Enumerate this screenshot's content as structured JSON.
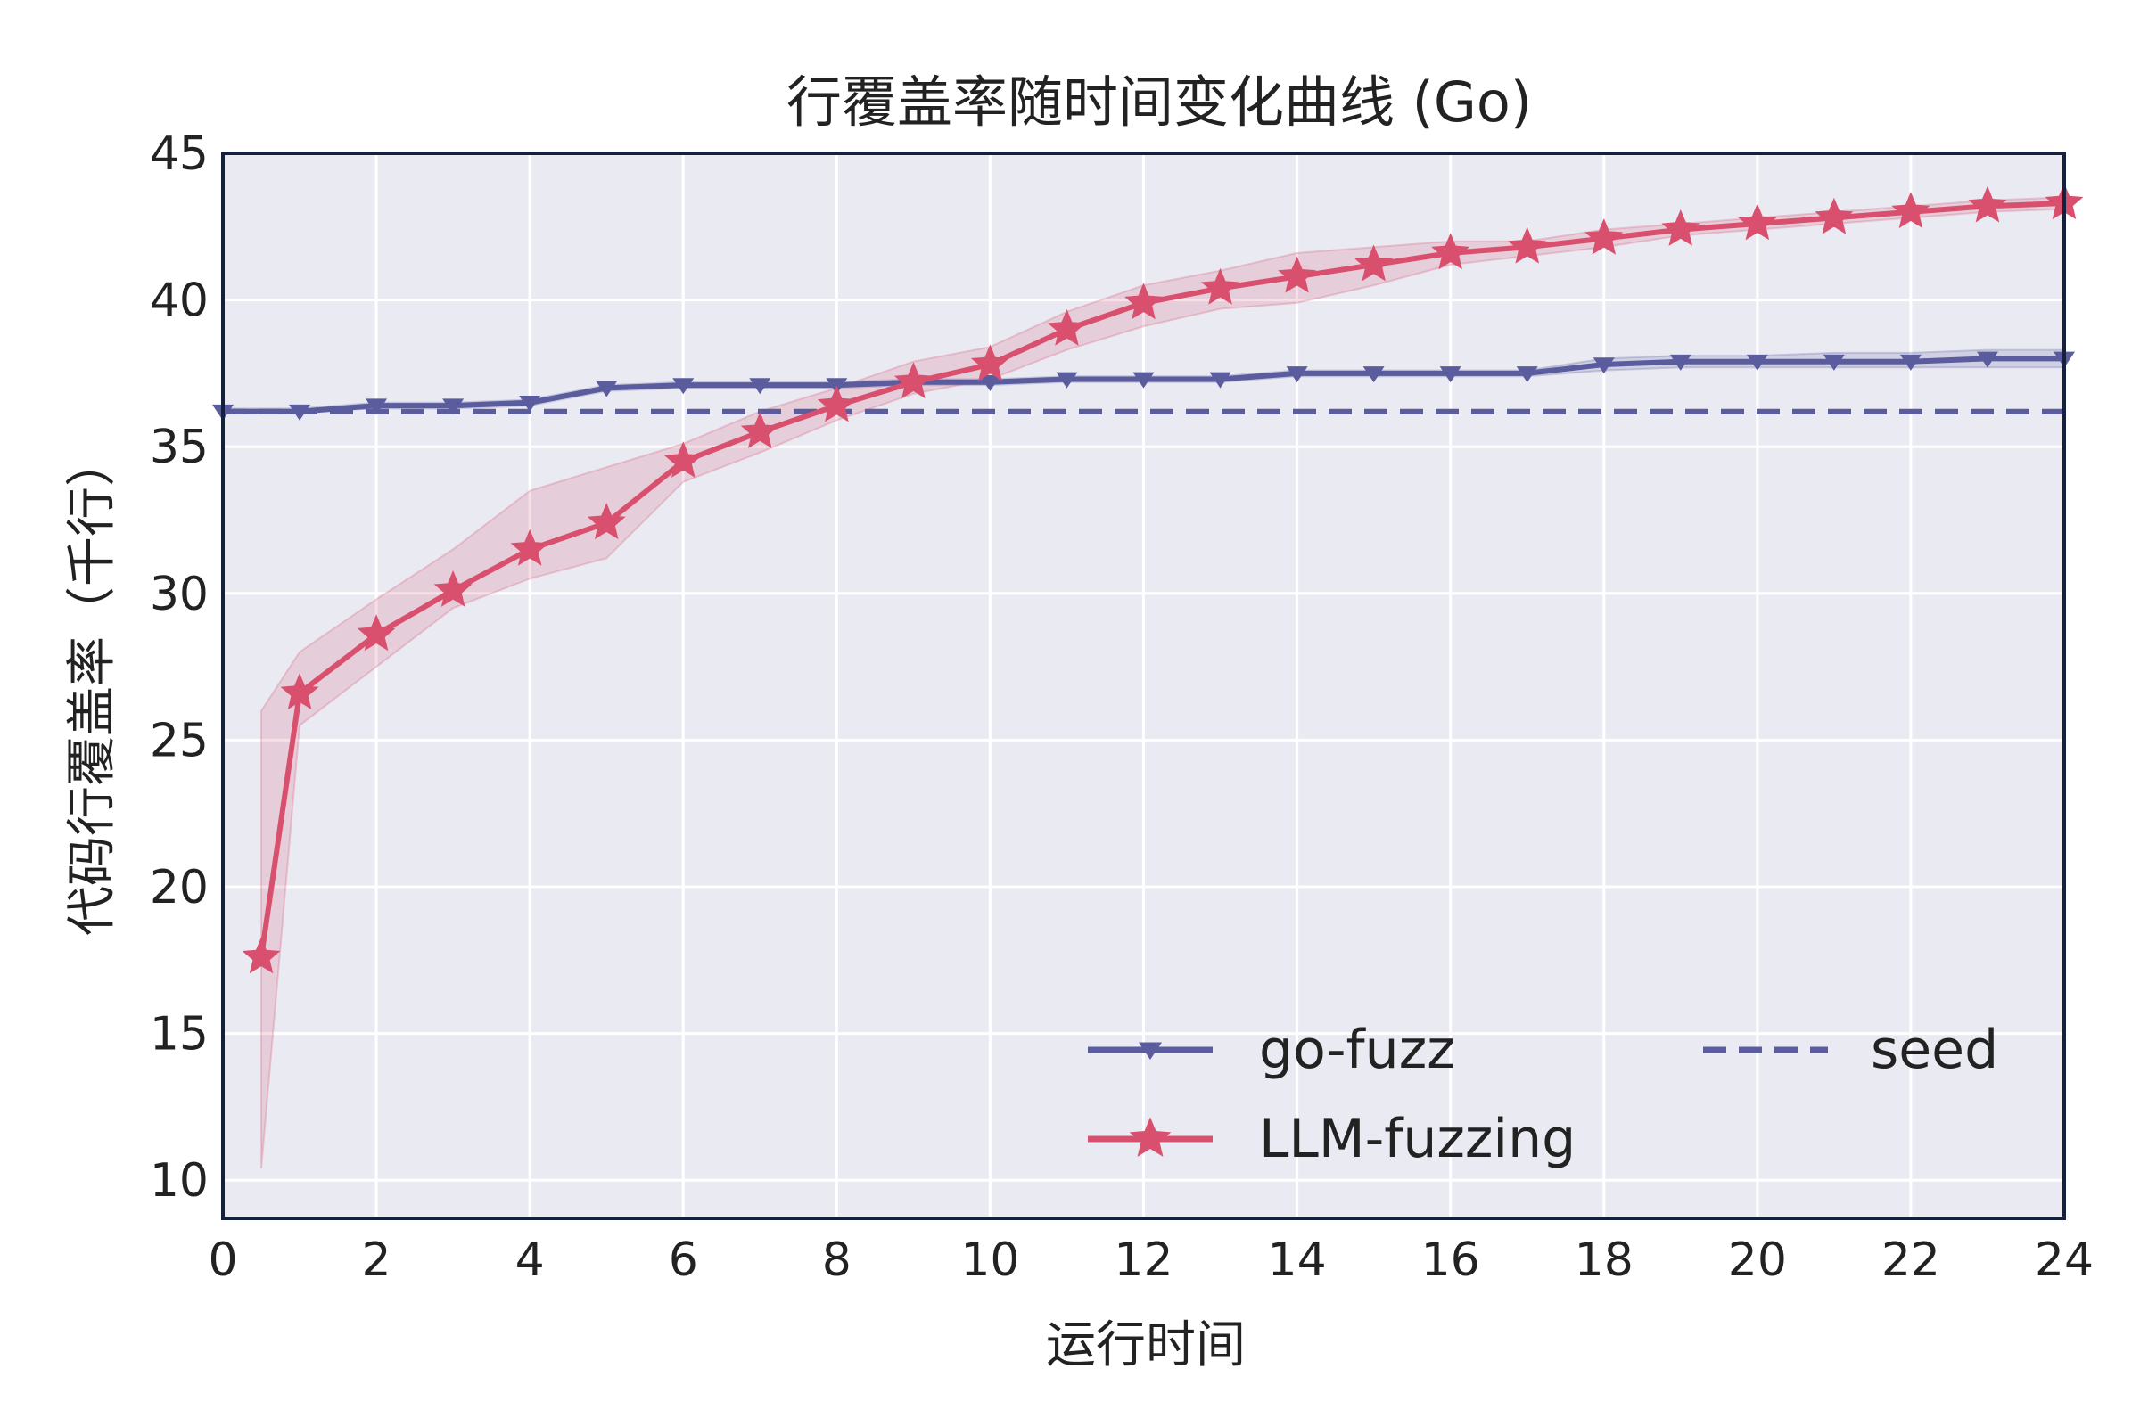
{
  "chart_data": {
    "type": "line",
    "title": "行覆盖率随时间变化曲线 (Go)",
    "xlabel": "运行时间",
    "ylabel": "代码行覆盖率（千行）",
    "xlim": [
      0,
      24
    ],
    "ylim": [
      8.7,
      45
    ],
    "xticks": [
      "0",
      "2",
      "4",
      "6",
      "8",
      "10",
      "12",
      "14",
      "16",
      "18",
      "20",
      "22",
      "24"
    ],
    "yticks": [
      "10",
      "15",
      "20",
      "25",
      "30",
      "35",
      "40",
      "45"
    ],
    "grid": true,
    "legend_position": "lower-right",
    "seed": {
      "name": "seed",
      "value": 36.2,
      "color": "#5a5c9e"
    },
    "series": [
      {
        "name": "go-fuzz",
        "marker": "triangle-down",
        "color": "#5a5c9e",
        "x": [
          0,
          1,
          2,
          3,
          4,
          5,
          6,
          7,
          8,
          9,
          10,
          11,
          12,
          13,
          14,
          15,
          16,
          17,
          18,
          19,
          20,
          21,
          22,
          23,
          24
        ],
        "y": [
          36.2,
          36.2,
          36.4,
          36.4,
          36.5,
          37.0,
          37.1,
          37.1,
          37.1,
          37.2,
          37.2,
          37.3,
          37.3,
          37.3,
          37.5,
          37.5,
          37.5,
          37.5,
          37.8,
          37.9,
          37.9,
          37.9,
          37.9,
          38.0,
          38.0
        ],
        "lower": [
          36.2,
          36.2,
          36.3,
          36.3,
          36.4,
          36.9,
          37.0,
          37.0,
          37.0,
          37.1,
          37.1,
          37.2,
          37.2,
          37.2,
          37.4,
          37.4,
          37.4,
          37.4,
          37.6,
          37.7,
          37.7,
          37.7,
          37.7,
          37.7,
          37.7
        ],
        "upper": [
          36.3,
          36.3,
          36.5,
          36.5,
          36.6,
          37.1,
          37.2,
          37.2,
          37.2,
          37.3,
          37.3,
          37.4,
          37.4,
          37.4,
          37.6,
          37.6,
          37.6,
          37.6,
          38.0,
          38.1,
          38.1,
          38.2,
          38.2,
          38.3,
          38.3
        ]
      },
      {
        "name": "LLM-fuzzing",
        "marker": "star",
        "color": "#d9506e",
        "x": [
          0.5,
          1,
          2,
          3,
          4,
          5,
          6,
          7,
          8,
          9,
          10,
          11,
          12,
          13,
          14,
          15,
          16,
          17,
          18,
          19,
          20,
          21,
          22,
          23,
          24
        ],
        "y": [
          17.6,
          26.6,
          28.6,
          30.1,
          31.5,
          32.4,
          34.5,
          35.5,
          36.4,
          37.2,
          37.8,
          39.0,
          39.9,
          40.4,
          40.8,
          41.2,
          41.6,
          41.8,
          42.1,
          42.4,
          42.6,
          42.8,
          43.0,
          43.2,
          43.3
        ],
        "lower": [
          10.4,
          25.5,
          27.5,
          29.5,
          30.5,
          31.2,
          33.8,
          34.8,
          35.9,
          36.8,
          37.3,
          38.3,
          39.1,
          39.7,
          39.9,
          40.5,
          41.2,
          41.5,
          41.8,
          42.2,
          42.4,
          42.6,
          42.8,
          43.0,
          43.1
        ],
        "upper": [
          26.0,
          28.0,
          29.8,
          31.5,
          33.5,
          34.3,
          35.1,
          36.2,
          37.0,
          37.9,
          38.4,
          39.6,
          40.5,
          41.0,
          41.6,
          41.8,
          42.0,
          42.0,
          42.4,
          42.6,
          42.8,
          43.0,
          43.2,
          43.4,
          43.5
        ]
      }
    ]
  }
}
